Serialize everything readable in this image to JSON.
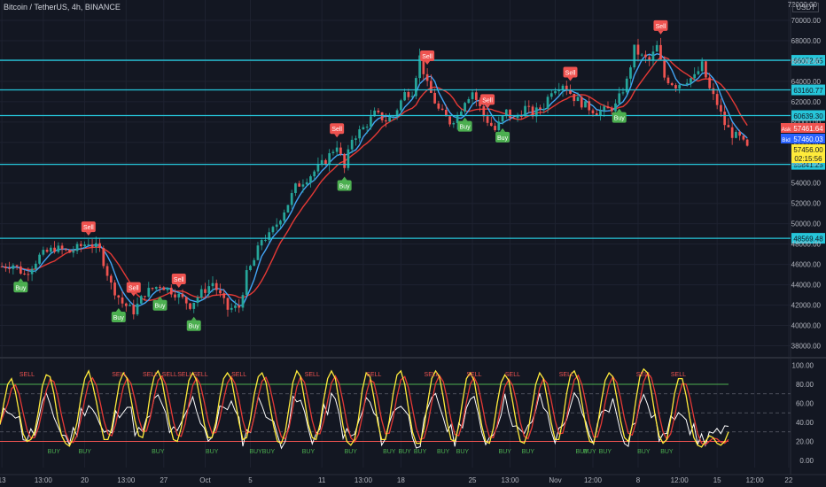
{
  "header": {
    "title": "Bitcoin / TetherUS, 4h, BINANCE",
    "currency": "USDT"
  },
  "chart_data": {
    "type": "candlestick",
    "price_axis": {
      "ticks": [
        38000,
        40000,
        42000,
        44000,
        46000,
        48000,
        50000,
        52000,
        54000,
        56000,
        58000,
        60000,
        62000,
        64000,
        66000,
        68000,
        70000
      ],
      "tick_labels": [
        "38000.00",
        "40000.00",
        "42000.00",
        "44000.00",
        "46000.00",
        "48000.00",
        "50000.00",
        "52000.00",
        "54000.00",
        "56000.00",
        "58000.00",
        "60000.00",
        "62000.00",
        "64000.00",
        "66000.00",
        "68000.00",
        "70000.00"
      ],
      "top_label": "72000.00",
      "ylim": [
        37000,
        72000
      ]
    },
    "horizontal_levels": [
      {
        "value": 66072.65,
        "label": "66072.65"
      },
      {
        "value": 63160.77,
        "label": "63160.77"
      },
      {
        "value": 60639.3,
        "label": "60639.30"
      },
      {
        "value": 55841.25,
        "label": "55841.25"
      },
      {
        "value": 48569.48,
        "label": "48569.48"
      }
    ],
    "price_tags": [
      {
        "prefix": "Ask",
        "value": 57461.64,
        "label": "57461.64",
        "color": "#ef5350"
      },
      {
        "prefix": "Bid",
        "value": 57460.03,
        "label": "57460.03",
        "color": "#2962ff"
      },
      {
        "prefix": "",
        "value": 57456.0,
        "label": "57456.00",
        "color": "#ffeb3b"
      },
      {
        "prefix": "",
        "value": 56850.0,
        "label": "02:15:56",
        "color": "#ffeb3b"
      }
    ],
    "path_points": [
      [
        0,
        45800
      ],
      [
        3,
        46000
      ],
      [
        6,
        45000
      ],
      [
        10,
        46800
      ],
      [
        14,
        47600
      ],
      [
        18,
        47200
      ],
      [
        23,
        48200
      ],
      [
        26,
        47400
      ],
      [
        29,
        44000
      ],
      [
        32,
        42200
      ],
      [
        35,
        41400
      ],
      [
        38,
        43200
      ],
      [
        42,
        44000
      ],
      [
        46,
        43200
      ],
      [
        50,
        42000
      ],
      [
        53,
        43200
      ],
      [
        56,
        44200
      ],
      [
        60,
        41600
      ],
      [
        63,
        41800
      ],
      [
        65,
        45000
      ],
      [
        67,
        46400
      ],
      [
        69,
        48500
      ],
      [
        71,
        48800
      ],
      [
        73,
        50000
      ],
      [
        76,
        52000
      ],
      [
        78,
        53600
      ],
      [
        82,
        54800
      ],
      [
        86,
        56200
      ],
      [
        89,
        57800
      ],
      [
        91,
        55400
      ],
      [
        93,
        58400
      ],
      [
        96,
        59400
      ],
      [
        99,
        60800
      ],
      [
        102,
        60200
      ],
      [
        104,
        60600
      ],
      [
        107,
        62800
      ],
      [
        109,
        63000
      ],
      [
        111,
        66400
      ],
      [
        113,
        63600
      ],
      [
        116,
        61200
      ],
      [
        119,
        60000
      ],
      [
        121,
        60600
      ],
      [
        123,
        62200
      ],
      [
        125,
        63000
      ],
      [
        128,
        60600
      ],
      [
        131,
        59200
      ],
      [
        134,
        61000
      ],
      [
        136,
        60200
      ],
      [
        139,
        61400
      ],
      [
        141,
        60800
      ],
      [
        144,
        61600
      ],
      [
        146,
        63200
      ],
      [
        149,
        63800
      ],
      [
        152,
        62400
      ],
      [
        155,
        61600
      ],
      [
        158,
        61000
      ],
      [
        161,
        61200
      ],
      [
        163,
        61600
      ],
      [
        166,
        64000
      ],
      [
        168,
        67200
      ],
      [
        170,
        66400
      ],
      [
        172,
        66000
      ],
      [
        174,
        67400
      ],
      [
        176,
        64400
      ],
      [
        179,
        63600
      ],
      [
        182,
        64200
      ],
      [
        184,
        64400
      ],
      [
        186,
        65600
      ],
      [
        188,
        63200
      ],
      [
        190,
        61800
      ],
      [
        192,
        59800
      ],
      [
        194,
        58800
      ],
      [
        196,
        58400
      ],
      [
        198,
        57400
      ]
    ],
    "signals": [
      {
        "type": "sell",
        "label": "Sell",
        "i": 23
      },
      {
        "type": "buy",
        "label": "Buy",
        "i": 5
      },
      {
        "type": "sell",
        "label": "Sell",
        "i": 35
      },
      {
        "type": "buy",
        "label": "Buy",
        "i": 31
      },
      {
        "type": "buy",
        "label": "Buy",
        "i": 42
      },
      {
        "type": "sell",
        "label": "Sell",
        "i": 47
      },
      {
        "type": "buy",
        "label": "Buy",
        "i": 51
      },
      {
        "type": "sell",
        "label": "Sell",
        "i": 89
      },
      {
        "type": "buy",
        "label": "Buy",
        "i": 91
      },
      {
        "type": "sell",
        "label": "Sell",
        "i": 113
      },
      {
        "type": "sell",
        "label": "Sell",
        "i": 129
      },
      {
        "type": "buy",
        "label": "Buy",
        "i": 123
      },
      {
        "type": "buy",
        "label": "Buy",
        "i": 133
      },
      {
        "type": "sell",
        "label": "Sell",
        "i": 151
      },
      {
        "type": "buy",
        "label": "Buy",
        "i": 164
      },
      {
        "type": "sell",
        "label": "Sell",
        "i": 175
      }
    ],
    "time_axis": {
      "labels": [
        "13",
        "13:00",
        "20",
        "13:00",
        "27",
        "Oct",
        "5",
        "11",
        "13:00",
        "18",
        "25",
        "13:00",
        "Nov",
        "12:00",
        "8",
        "12:00",
        "15",
        "12:00",
        "22"
      ],
      "bar_index": [
        0,
        11,
        22,
        33,
        43,
        54,
        66,
        85,
        96,
        106,
        125,
        135,
        147,
        157,
        169,
        180,
        190,
        200,
        209
      ]
    },
    "oscillator": {
      "ticks": [
        "100.00",
        "80.00",
        "60.00",
        "40.00",
        "20.00",
        "0.00"
      ],
      "tick_values": [
        100,
        80,
        60,
        40,
        20,
        0
      ],
      "upper_band": 80,
      "lower_band": 20,
      "dashed_levels": [
        70,
        50,
        30
      ],
      "yellow": [
        38,
        60,
        80,
        86,
        72,
        50,
        28,
        20,
        22,
        30,
        52,
        78,
        90,
        88,
        70,
        44,
        26,
        18,
        15,
        24,
        40,
        66,
        86,
        94,
        80,
        62,
        40,
        22,
        22,
        34,
        58,
        82,
        92,
        86,
        64,
        42,
        26,
        24,
        42,
        70,
        88,
        94,
        84,
        62,
        38,
        22,
        20,
        34,
        60,
        84,
        92,
        84,
        62,
        38,
        24,
        24,
        40,
        66,
        86,
        92,
        86,
        64,
        40,
        22,
        24,
        44,
        70,
        88,
        92,
        82,
        58,
        36,
        20,
        18,
        30,
        56,
        82,
        94,
        88,
        64,
        38,
        24,
        22,
        38,
        64,
        86,
        94,
        86,
        62,
        36,
        20,
        16,
        22,
        44,
        74,
        92,
        88,
        66,
        40,
        22,
        22,
        42,
        70,
        90,
        94,
        80,
        54,
        30,
        18,
        18,
        34,
        62,
        86,
        94,
        88,
        66,
        40,
        22,
        20,
        36,
        62,
        86,
        92,
        84,
        60,
        36,
        20,
        18,
        34,
        60,
        82,
        90,
        84,
        62,
        38,
        20,
        18,
        30,
        56,
        80,
        92,
        86,
        64,
        40,
        22,
        22,
        42,
        70,
        90,
        94,
        84,
        60,
        36,
        20,
        18,
        36,
        62,
        84,
        92,
        88,
        66,
        42,
        24,
        20,
        36,
        64,
        88,
        96,
        92,
        72,
        46,
        26,
        18,
        22,
        44,
        70,
        86,
        86,
        68,
        44,
        24,
        16,
        14,
        20,
        26,
        24,
        18,
        16,
        20,
        30
      ],
      "red": [],
      "white": [],
      "buy_labels": [
        {
          "t": "BUY",
          "i": 14
        },
        {
          "t": "BUY",
          "i": 22
        },
        {
          "t": "BUY",
          "i": 41
        },
        {
          "t": "BUY",
          "i": 55
        },
        {
          "t": "BUYBUY",
          "i": 68
        },
        {
          "t": "BUY",
          "i": 80
        },
        {
          "t": "BUY",
          "i": 91
        },
        {
          "t": "BUY",
          "i": 101
        },
        {
          "t": "BUY",
          "i": 105
        },
        {
          "t": "BUY",
          "i": 109
        },
        {
          "t": "BUY",
          "i": 115
        },
        {
          "t": "BUY",
          "i": 120
        },
        {
          "t": "BUY",
          "i": 131
        },
        {
          "t": "BUY",
          "i": 137
        },
        {
          "t": "BUY",
          "i": 151
        },
        {
          "t": "BUY",
          "i": 153
        },
        {
          "t": "BUY",
          "i": 157
        },
        {
          "t": "BUY",
          "i": 167
        },
        {
          "t": "BUY",
          "i": 173
        }
      ],
      "sell_labels": [
        {
          "t": "SELL",
          "i": 7
        },
        {
          "t": "SELL",
          "i": 31
        },
        {
          "t": "SELL",
          "i": 39
        },
        {
          "t": "SELL",
          "i": 44
        },
        {
          "t": "SELL",
          "i": 48
        },
        {
          "t": "SELL",
          "i": 52
        },
        {
          "t": "SELL",
          "i": 62
        },
        {
          "t": "SELL",
          "i": 81
        },
        {
          "t": "SELL",
          "i": 97
        },
        {
          "t": "SELL",
          "i": 112
        },
        {
          "t": "SELL",
          "i": 123
        },
        {
          "t": "SELL",
          "i": 133
        },
        {
          "t": "SELL",
          "i": 147
        },
        {
          "t": "SELL",
          "i": 167
        },
        {
          "t": "SELL",
          "i": 176
        }
      ]
    },
    "colors": {
      "background": "#131722",
      "grid": "#1e2230",
      "up": "#26a69a",
      "down": "#ef5350",
      "level": "#26c6da",
      "ma_fast": "#42a5f5",
      "ma_slow": "#e53935",
      "signal_buy": "#4caf50",
      "signal_sell": "#ef5350",
      "yellow": "#ffeb3b",
      "white": "#ffffff",
      "axis_text": "#b2b5be",
      "upper_band": "#4caf50",
      "lower_band": "#ef5350"
    }
  }
}
